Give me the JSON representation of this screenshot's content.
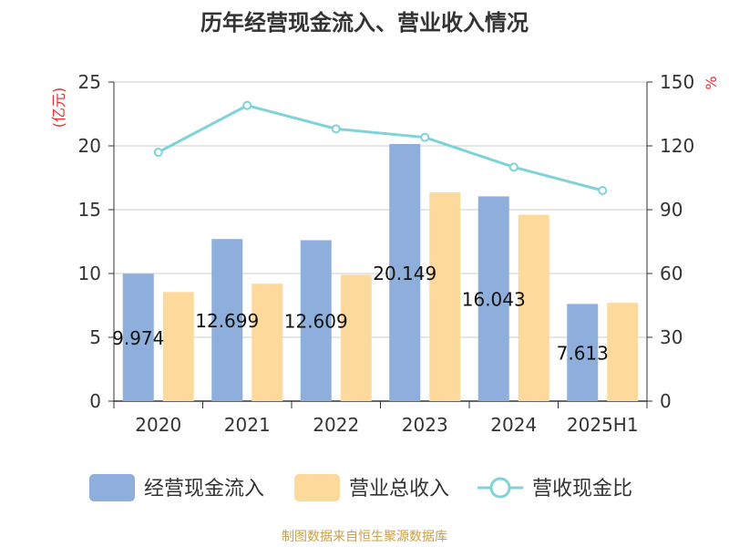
{
  "chart_data": {
    "type": "bar",
    "title": "历年经营现金流入、营业收入情况",
    "categories": [
      "2020",
      "2021",
      "2022",
      "2023",
      "2024",
      "2025H1"
    ],
    "left_axis": {
      "label": "(亿元)",
      "ticks": [
        "0",
        "5",
        "10",
        "15",
        "20",
        "25"
      ],
      "range": [
        0,
        25
      ]
    },
    "right_axis": {
      "label": "%",
      "ticks": [
        "0",
        "30",
        "60",
        "90",
        "120",
        "150"
      ],
      "range": [
        0,
        150
      ]
    },
    "grid": true,
    "legend_position": "bottom",
    "series": [
      {
        "name": "经营现金流入",
        "kind": "bar",
        "axis": "left",
        "color": "#8eaedb",
        "values": [
          9.974,
          12.699,
          12.609,
          20.149,
          16.043,
          7.613
        ],
        "labels": [
          "9.974",
          "12.699",
          "12.609",
          "20.149",
          "16.043",
          "7.613"
        ]
      },
      {
        "name": "营业总收入",
        "kind": "bar",
        "axis": "left",
        "color": "#fdd99b",
        "values": [
          8.55,
          9.2,
          9.9,
          16.35,
          14.6,
          7.7
        ]
      },
      {
        "name": "营收现金比",
        "kind": "line",
        "axis": "right",
        "color": "#7fd3d8",
        "values": [
          117,
          139,
          128,
          124,
          110,
          99
        ]
      }
    ],
    "axis_label_color": "#e0302c"
  },
  "source": "制图数据来自恒生聚源数据库"
}
